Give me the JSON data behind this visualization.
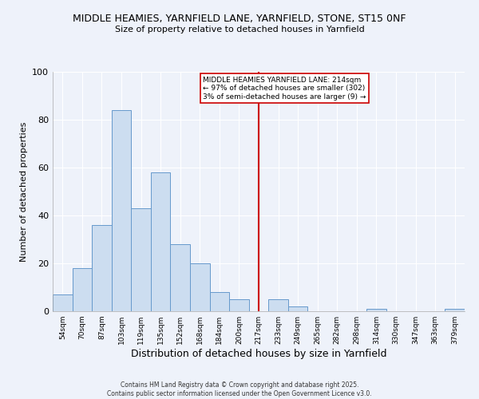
{
  "title": "MIDDLE HEAMIES, YARNFIELD LANE, YARNFIELD, STONE, ST15 0NF",
  "subtitle": "Size of property relative to detached houses in Yarnfield",
  "xlabel": "Distribution of detached houses by size in Yarnfield",
  "ylabel": "Number of detached properties",
  "bin_labels": [
    "54sqm",
    "70sqm",
    "87sqm",
    "103sqm",
    "119sqm",
    "135sqm",
    "152sqm",
    "168sqm",
    "184sqm",
    "200sqm",
    "217sqm",
    "233sqm",
    "249sqm",
    "265sqm",
    "282sqm",
    "298sqm",
    "314sqm",
    "330sqm",
    "347sqm",
    "363sqm",
    "379sqm"
  ],
  "bar_heights": [
    7,
    18,
    36,
    84,
    43,
    58,
    28,
    20,
    8,
    5,
    0,
    5,
    2,
    0,
    0,
    0,
    1,
    0,
    0,
    0,
    1
  ],
  "bar_color": "#ccddf0",
  "bar_edge_color": "#6699cc",
  "vline_x_index": 10,
  "vline_color": "#cc0000",
  "annotation_title": "MIDDLE HEAMIES YARNFIELD LANE: 214sqm",
  "annotation_line1": "← 97% of detached houses are smaller (302)",
  "annotation_line2": "3% of semi-detached houses are larger (9) →",
  "ylim": [
    0,
    100
  ],
  "background_color": "#eef2fa",
  "grid_color": "#ffffff",
  "footer1": "Contains HM Land Registry data © Crown copyright and database right 2025.",
  "footer2": "Contains public sector information licensed under the Open Government Licence v3.0."
}
